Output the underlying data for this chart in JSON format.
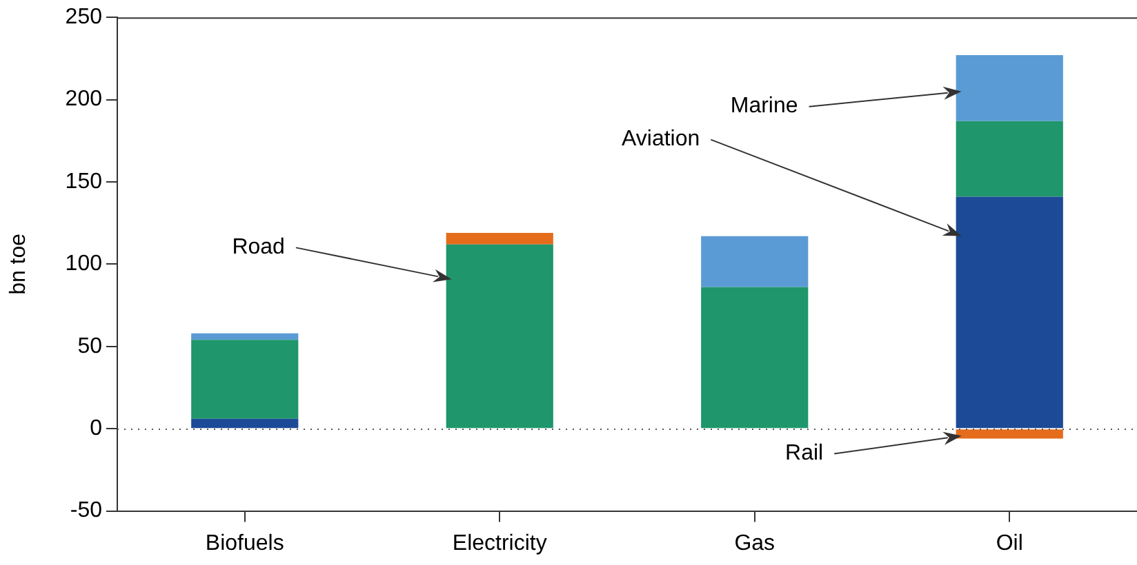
{
  "chart_data": {
    "type": "bar",
    "stacked": true,
    "ylabel": "bn toe",
    "categories": [
      "Biofuels",
      "Electricity",
      "Gas",
      "Oil"
    ],
    "series": [
      {
        "name": "Aviation",
        "color": "#1c4a96",
        "values": [
          6,
          null,
          null,
          141
        ]
      },
      {
        "name": "Road",
        "color": "#1f966b",
        "values": [
          48,
          112,
          86,
          46
        ]
      },
      {
        "name": "Marine",
        "color": "#5b9bd5",
        "values": [
          4,
          null,
          31,
          40
        ]
      },
      {
        "name": "Rail",
        "color": "#e46c1b",
        "values": [
          null,
          7,
          null,
          -6
        ]
      }
    ],
    "ylim": [
      -50,
      250
    ],
    "yticks": [
      -50,
      0,
      50,
      100,
      150,
      200,
      250
    ],
    "ref_lines": [
      {
        "axis": "y",
        "value": 0,
        "line_style": "dotted",
        "color": "#555555"
      }
    ],
    "grid": false,
    "legend": false
  }
}
